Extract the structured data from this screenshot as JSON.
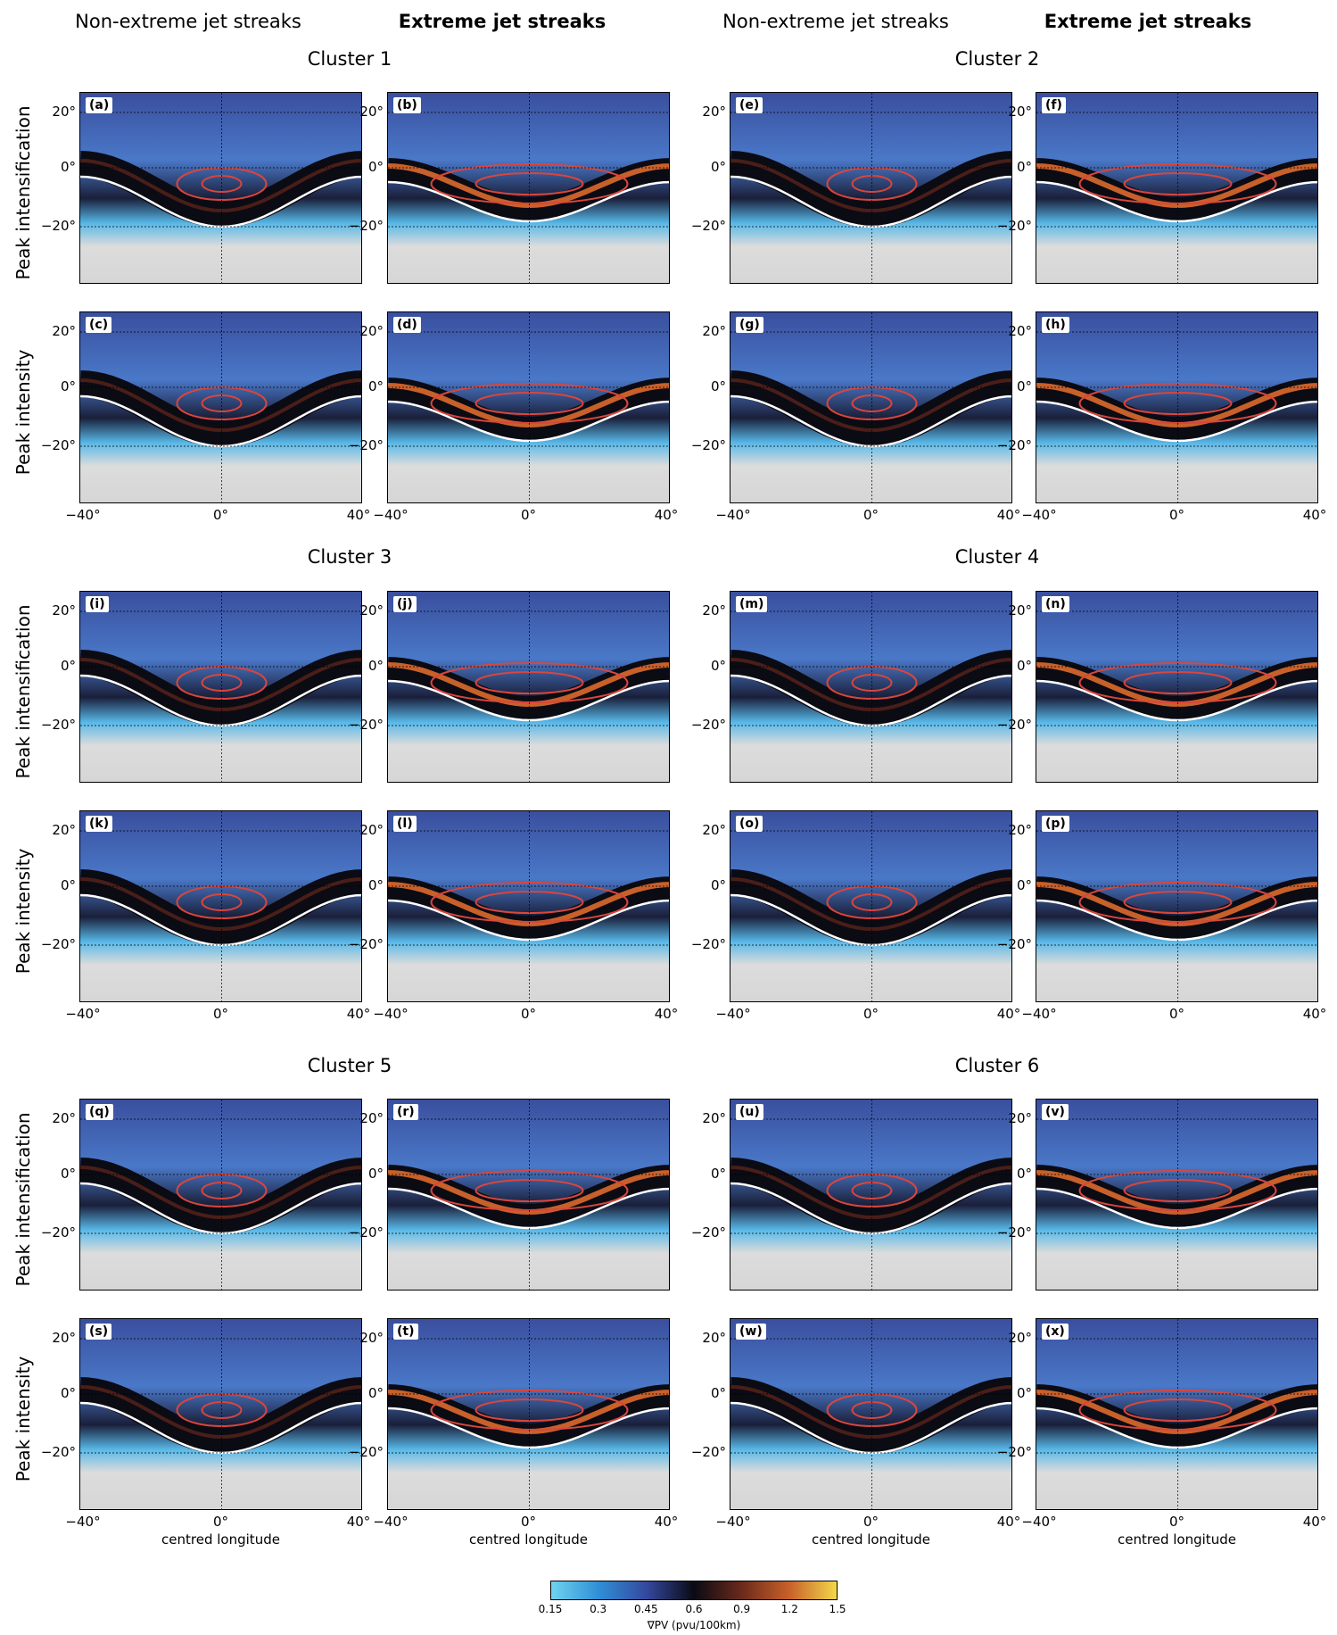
{
  "column_headers": [
    "Non-extreme jet streaks",
    "Extreme jet streaks",
    "Non-extreme jet streaks",
    "Extreme jet streaks"
  ],
  "cluster_titles": [
    "Cluster 1",
    "Cluster 2",
    "Cluster 3",
    "Cluster 4",
    "Cluster 5",
    "Cluster 6"
  ],
  "row_labels": [
    "Peak intensification",
    "Peak intensity"
  ],
  "panel_tags": [
    "(a)",
    "(b)",
    "(c)",
    "(d)",
    "(e)",
    "(f)",
    "(g)",
    "(h)",
    "(i)",
    "(j)",
    "(k)",
    "(l)",
    "(m)",
    "(n)",
    "(o)",
    "(p)",
    "(q)",
    "(r)",
    "(s)",
    "(t)",
    "(u)",
    "(v)",
    "(w)",
    "(x)"
  ],
  "y_ticks": [
    "20°",
    "0°",
    "−20°"
  ],
  "x_ticks": [
    "−40°",
    "0°",
    "40°"
  ],
  "x_axis_label": "centred longitude",
  "colorbar": {
    "ticks": [
      "0.15",
      "0.3",
      "0.45",
      "0.6",
      "0.9",
      "1.2",
      "1.5"
    ],
    "label": "∇PV (pvu/100km)",
    "colors": [
      "#6fd3ef",
      "#2f8fd6",
      "#3548a0",
      "#0a0a14",
      "#6a2a1c",
      "#c8602a",
      "#f2d84a"
    ]
  }
}
